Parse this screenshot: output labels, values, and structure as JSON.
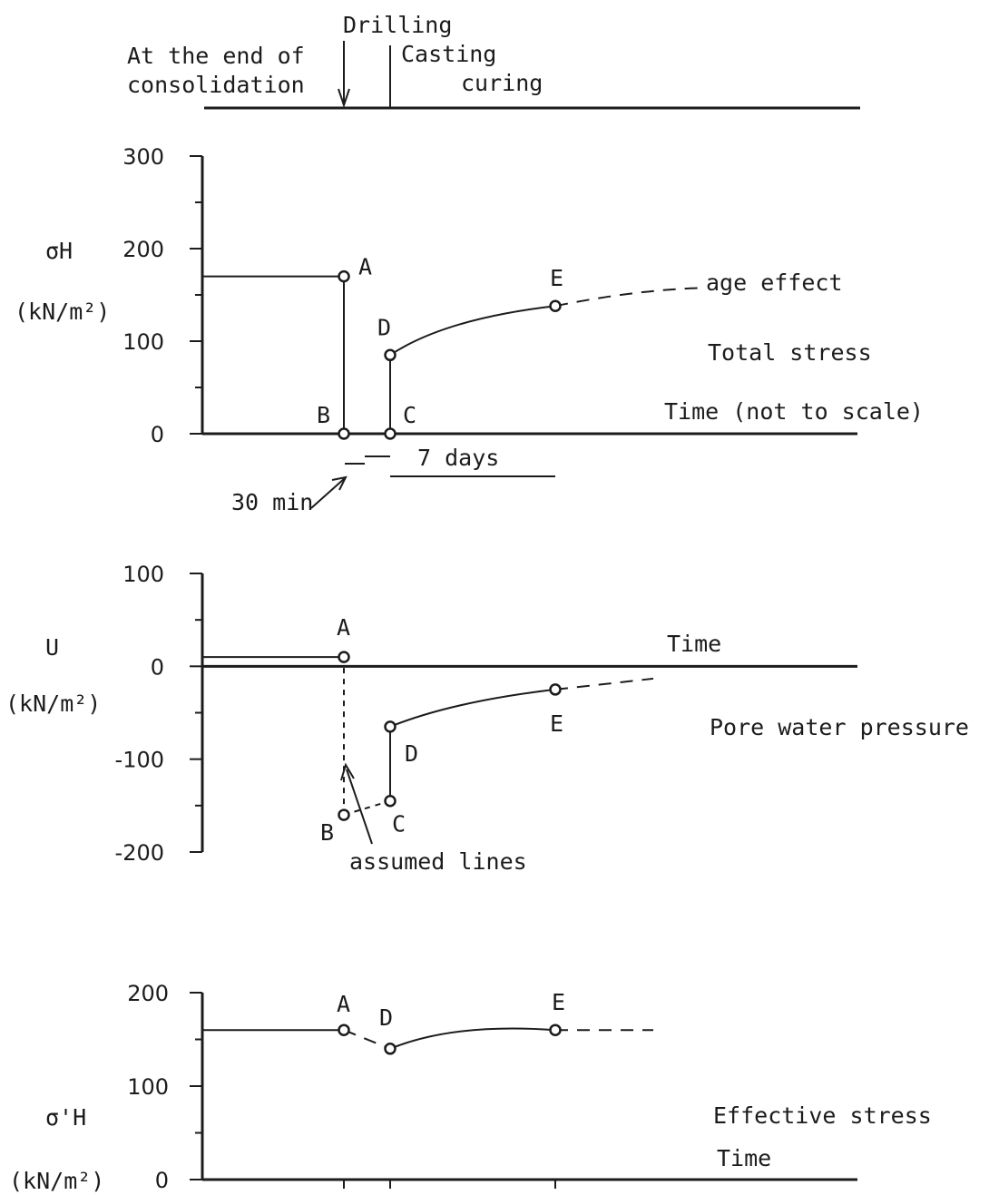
{
  "timeline": {
    "stage1_line1": "At the end of",
    "stage1_line2": "consolidation",
    "drilling": "Drilling",
    "casting": "Casting",
    "curing": "curing"
  },
  "chart_data": [
    {
      "type": "line",
      "id": "total",
      "title": "Total stress",
      "ylabel_main": "σH",
      "ylabel_unit": "(kN/m²)",
      "xlabel": "Time (not to scale)",
      "ylim": [
        0,
        300
      ],
      "yticks": [
        "0",
        "100",
        "200",
        "300"
      ],
      "points": [
        {
          "label": "A",
          "t": 0.0,
          "v": 170
        },
        {
          "label": "B",
          "t": 0.0,
          "v": 0
        },
        {
          "label": "C",
          "t": 0.5,
          "v": 0
        },
        {
          "label": "D",
          "t": 0.5,
          "v": 85
        },
        {
          "label": "E",
          "t": 7.5,
          "v": 138
        }
      ],
      "annotations": {
        "age_effect": "age effect",
        "days": "7 days",
        "min": "30 min"
      }
    },
    {
      "type": "line",
      "id": "pore",
      "title": "Pore water pressure",
      "ylabel_main": "U",
      "ylabel_unit": "(kN/m²)",
      "xlabel": "Time",
      "ylim": [
        -200,
        100
      ],
      "yticks": [
        "-200",
        "-100",
        "0",
        "100"
      ],
      "points": [
        {
          "label": "A",
          "t": 0.0,
          "v": 10
        },
        {
          "label": "B",
          "t": 0.0,
          "v": -160
        },
        {
          "label": "C",
          "t": 0.5,
          "v": -145
        },
        {
          "label": "D",
          "t": 0.5,
          "v": -65
        },
        {
          "label": "E",
          "t": 7.5,
          "v": -25
        }
      ],
      "annotations": {
        "assumed": "assumed lines"
      }
    },
    {
      "type": "line",
      "id": "effective",
      "title": "Effective stress",
      "ylabel_main": "σ'H",
      "ylabel_unit": "(kN/m²)",
      "xlabel": "Time",
      "ylim": [
        0,
        200
      ],
      "yticks": [
        "0",
        "100",
        "200"
      ],
      "points": [
        {
          "label": "A",
          "t": 0.0,
          "v": 160
        },
        {
          "label": "D",
          "t": 0.5,
          "v": 140
        },
        {
          "label": "E",
          "t": 7.5,
          "v": 160
        }
      ]
    }
  ]
}
